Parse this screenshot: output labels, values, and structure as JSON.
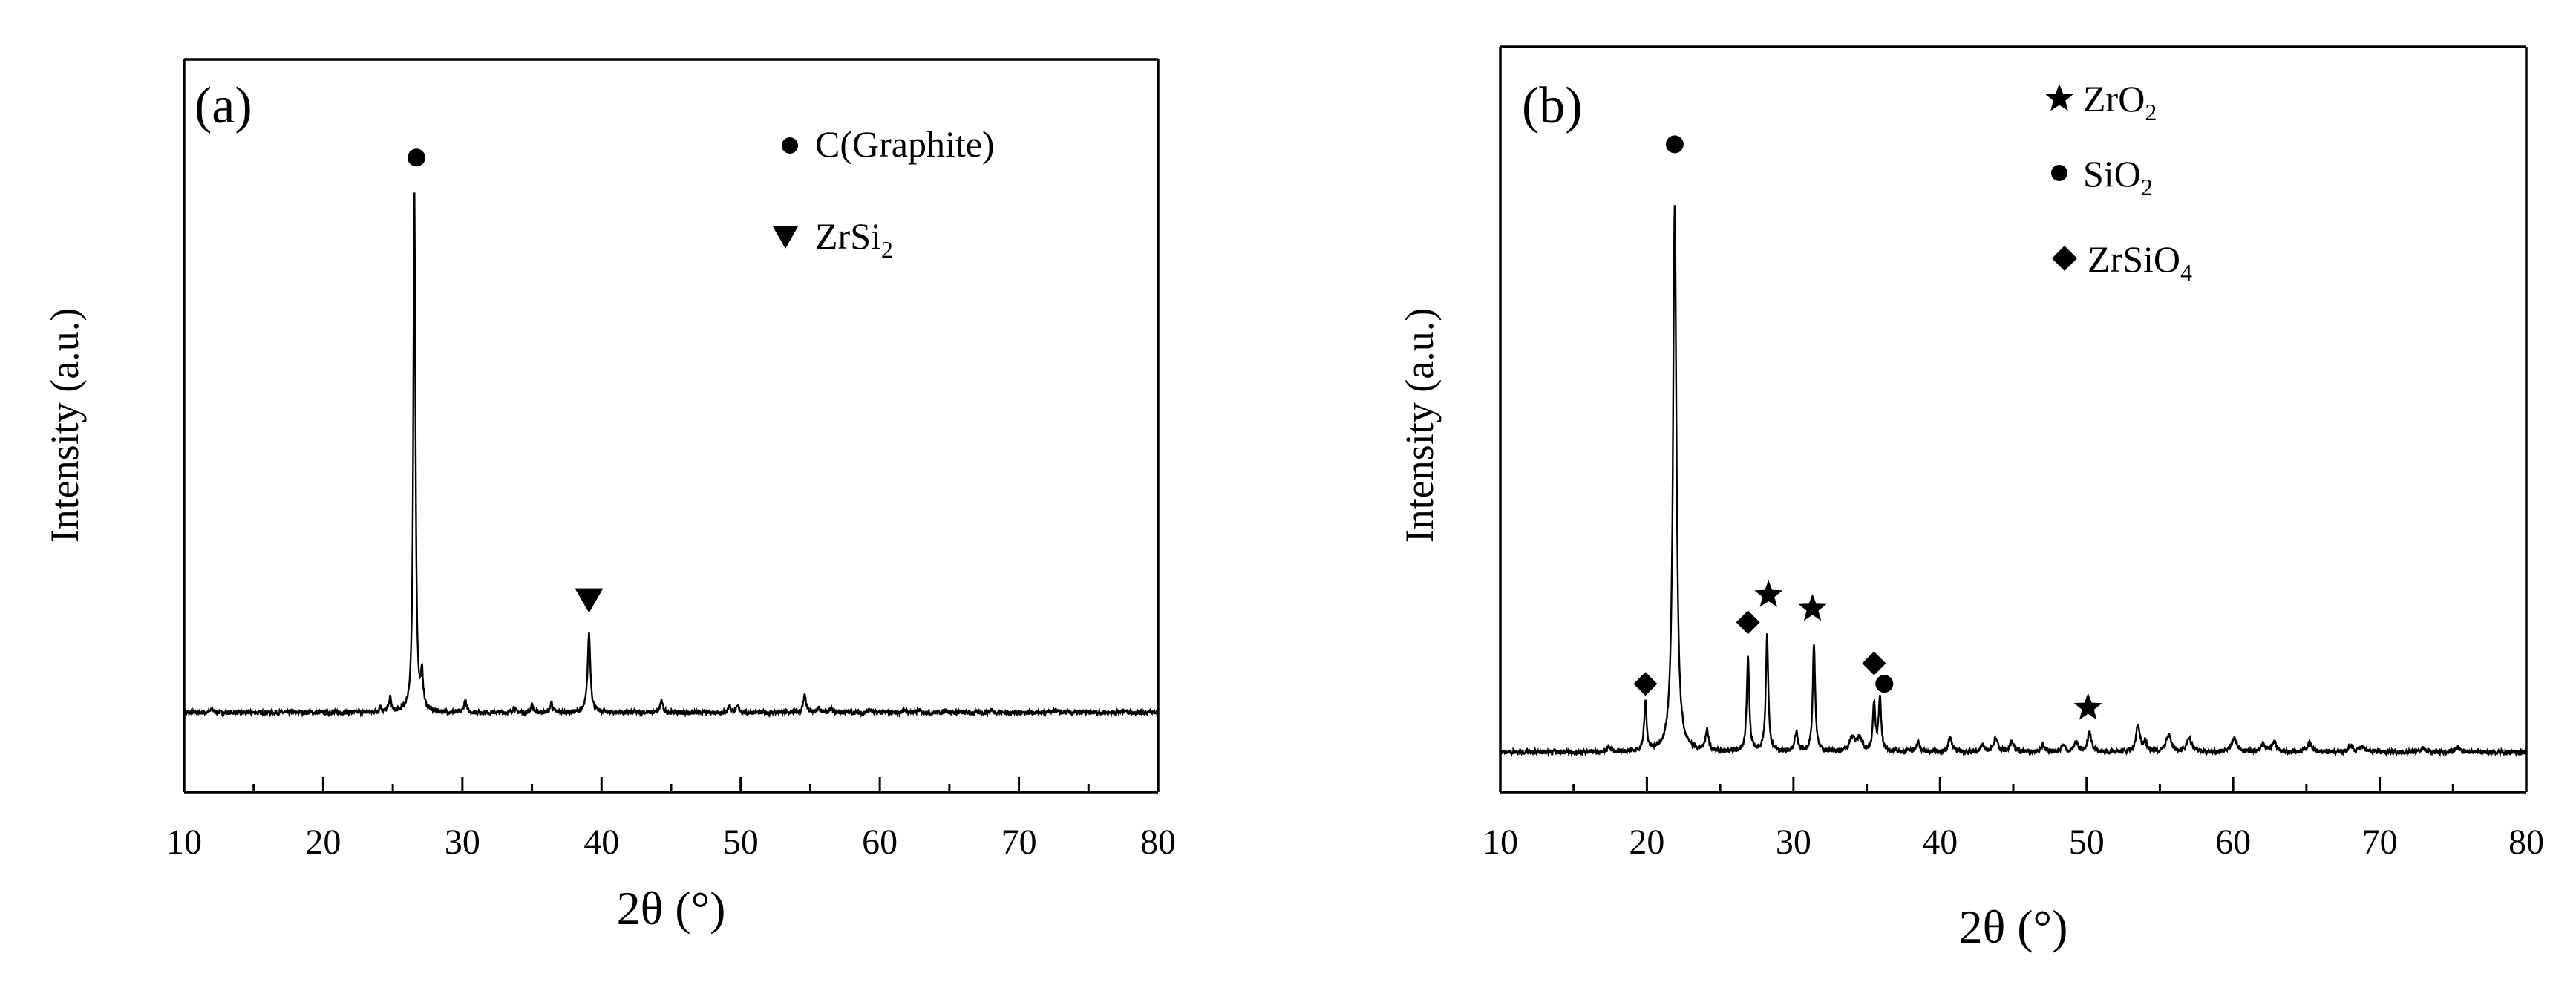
{
  "chart_data": [
    {
      "type": "line",
      "panel_label": "(a)",
      "xlabel": "2θ (°)",
      "ylabel": "Intensity (a.u.)",
      "xlim": [
        10,
        80
      ],
      "ylim": [
        0,
        100
      ],
      "xticks": [
        10,
        20,
        30,
        40,
        50,
        60,
        70,
        80
      ],
      "xtick_labels": [
        "10",
        "20",
        "30",
        "40",
        "50",
        "60",
        "70",
        "80"
      ],
      "grid": false,
      "legend": {
        "placement": "top-right",
        "entries": [
          {
            "marker": "circle",
            "label": "C(Graphite)",
            "sub": ""
          },
          {
            "marker": "triangle-down",
            "label": "ZrSi",
            "sub": "2"
          }
        ]
      },
      "baseline": 9,
      "peaks": [
        {
          "x": 12.0,
          "h": 0.5,
          "w": 0.12
        },
        {
          "x": 24.1,
          "h": 0.8,
          "w": 0.1
        },
        {
          "x": 24.8,
          "h": 2.2,
          "w": 0.1
        },
        {
          "x": 26.55,
          "h": 79,
          "w": 0.09
        },
        {
          "x": 27.1,
          "h": 5,
          "w": 0.1
        },
        {
          "x": 30.2,
          "h": 1.8,
          "w": 0.1
        },
        {
          "x": 33.7,
          "h": 0.8,
          "w": 0.1
        },
        {
          "x": 35.0,
          "h": 1.2,
          "w": 0.1
        },
        {
          "x": 36.4,
          "h": 1.6,
          "w": 0.1
        },
        {
          "x": 39.1,
          "h": 12,
          "w": 0.12
        },
        {
          "x": 44.3,
          "h": 1.7,
          "w": 0.12
        },
        {
          "x": 49.2,
          "h": 1.0,
          "w": 0.12
        },
        {
          "x": 49.8,
          "h": 0.9,
          "w": 0.12
        },
        {
          "x": 54.6,
          "h": 2.5,
          "w": 0.12
        },
        {
          "x": 55.6,
          "h": 0.7,
          "w": 0.12
        },
        {
          "x": 56.5,
          "h": 0.5,
          "w": 0.12
        },
        {
          "x": 59.3,
          "h": 0.4,
          "w": 0.12
        },
        {
          "x": 61.8,
          "h": 0.4,
          "w": 0.12
        },
        {
          "x": 62.8,
          "h": 0.4,
          "w": 0.12
        },
        {
          "x": 64.8,
          "h": 0.4,
          "w": 0.12
        },
        {
          "x": 68.0,
          "h": 0.4,
          "w": 0.12
        },
        {
          "x": 72.6,
          "h": 0.4,
          "w": 0.12
        },
        {
          "x": 77.6,
          "h": 0.4,
          "w": 0.12
        }
      ],
      "markers": [
        {
          "x": 26.7,
          "y": 93,
          "shape": "circle"
        },
        {
          "x": 39.1,
          "y": 26,
          "shape": "triangle-down"
        }
      ]
    },
    {
      "type": "line",
      "panel_label": "(b)",
      "xlabel": "2θ (°)",
      "ylabel": "Intensity (a.u.)",
      "xlim": [
        10,
        80
      ],
      "ylim": [
        0,
        100
      ],
      "xticks": [
        10,
        20,
        30,
        40,
        50,
        60,
        70,
        80
      ],
      "xtick_labels": [
        "10",
        "20",
        "30",
        "40",
        "50",
        "60",
        "70",
        "80"
      ],
      "grid": false,
      "legend": {
        "placement": "top-center",
        "entries": [
          {
            "marker": "star",
            "label": "ZrO",
            "sub": "2"
          },
          {
            "marker": "circle",
            "label": "SiO",
            "sub": "2"
          },
          {
            "marker": "diamond",
            "label": "ZrSiO",
            "sub": "4"
          }
        ]
      },
      "baseline": 4,
      "peaks": [
        {
          "x": 17.4,
          "h": 0.6,
          "w": 0.12
        },
        {
          "x": 19.9,
          "h": 7,
          "w": 0.1
        },
        {
          "x": 21.9,
          "h": 80,
          "w": 0.14
        },
        {
          "x": 24.1,
          "h": 3,
          "w": 0.12
        },
        {
          "x": 26.9,
          "h": 14,
          "w": 0.1
        },
        {
          "x": 28.2,
          "h": 17,
          "w": 0.1
        },
        {
          "x": 30.2,
          "h": 3,
          "w": 0.12
        },
        {
          "x": 31.4,
          "h": 16,
          "w": 0.1
        },
        {
          "x": 34.0,
          "h": 2,
          "w": 0.2
        },
        {
          "x": 34.5,
          "h": 2,
          "w": 0.2
        },
        {
          "x": 35.5,
          "h": 7,
          "w": 0.1
        },
        {
          "x": 35.9,
          "h": 8,
          "w": 0.1
        },
        {
          "x": 38.5,
          "h": 1.5,
          "w": 0.15
        },
        {
          "x": 40.7,
          "h": 2,
          "w": 0.15
        },
        {
          "x": 42.9,
          "h": 1,
          "w": 0.15
        },
        {
          "x": 43.8,
          "h": 2,
          "w": 0.15
        },
        {
          "x": 44.9,
          "h": 1.5,
          "w": 0.15
        },
        {
          "x": 47.0,
          "h": 1,
          "w": 0.15
        },
        {
          "x": 48.4,
          "h": 1,
          "w": 0.15
        },
        {
          "x": 49.3,
          "h": 1.5,
          "w": 0.15
        },
        {
          "x": 50.2,
          "h": 3,
          "w": 0.15
        },
        {
          "x": 53.5,
          "h": 4,
          "w": 0.15
        },
        {
          "x": 54.0,
          "h": 1.5,
          "w": 0.15
        },
        {
          "x": 55.6,
          "h": 2.5,
          "w": 0.2
        },
        {
          "x": 57.0,
          "h": 2,
          "w": 0.2
        },
        {
          "x": 60.1,
          "h": 2,
          "w": 0.2
        },
        {
          "x": 62.0,
          "h": 1,
          "w": 0.2
        },
        {
          "x": 62.8,
          "h": 1.5,
          "w": 0.2
        },
        {
          "x": 65.2,
          "h": 1.2,
          "w": 0.2
        },
        {
          "x": 68.0,
          "h": 0.8,
          "w": 0.2
        },
        {
          "x": 68.8,
          "h": 0.8,
          "w": 0.2
        },
        {
          "x": 73.0,
          "h": 0.5,
          "w": 0.2
        },
        {
          "x": 75.3,
          "h": 0.6,
          "w": 0.2
        }
      ],
      "markers": [
        {
          "x": 19.9,
          "y": 14,
          "shape": "diamond"
        },
        {
          "x": 21.9,
          "y": 93,
          "shape": "circle"
        },
        {
          "x": 26.9,
          "y": 23,
          "shape": "diamond"
        },
        {
          "x": 28.3,
          "y": 27,
          "shape": "star"
        },
        {
          "x": 31.3,
          "y": 25,
          "shape": "star"
        },
        {
          "x": 35.5,
          "y": 17,
          "shape": "diamond"
        },
        {
          "x": 36.2,
          "y": 14,
          "shape": "circle"
        },
        {
          "x": 50.1,
          "y": 10.5,
          "shape": "star"
        }
      ]
    }
  ]
}
